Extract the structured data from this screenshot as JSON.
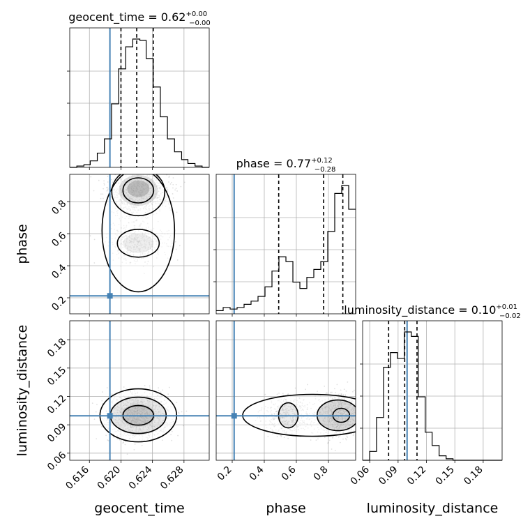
{
  "chart_data": {
    "type": "corner",
    "parameters": [
      "geocent_time",
      "phase",
      "luminosity_distance"
    ],
    "truths": {
      "geocent_time": 0.6186,
      "phase": 0.212,
      "luminosity_distance": 0.0995
    },
    "truth_color": "#4682b4",
    "ranges": {
      "geocent_time": [
        0.6135,
        0.6312
      ],
      "phase": [
        0.1,
        0.97
      ],
      "luminosity_distance": [
        0.0525,
        0.2
      ]
    },
    "ticks": {
      "geocent_time": {
        "values": [
          0.616,
          0.62,
          0.624,
          0.628
        ],
        "labels": [
          "0.616",
          "0.620",
          "0.624",
          "0.628"
        ]
      },
      "phase": {
        "values": [
          0.2,
          0.4,
          0.6,
          0.8
        ],
        "labels": [
          "0.2",
          "0.4",
          "0.6",
          "0.8"
        ]
      },
      "luminosity_distance": {
        "values": [
          0.06,
          0.09,
          0.12,
          0.15,
          0.18
        ],
        "labels": [
          "0.06",
          "0.09",
          "0.12",
          "0.15",
          "0.18"
        ]
      }
    },
    "titles": {
      "geocent_time": {
        "main": "geocent_time = 0.62",
        "upper": "+0.00",
        "lower": "−0.00"
      },
      "phase": {
        "main": "phase = 0.77",
        "upper": "+0.12",
        "lower": "−0.28"
      },
      "luminosity_distance": {
        "main": "luminosity_distance = 0.10",
        "upper": "+0.01",
        "lower": "−0.02"
      }
    },
    "quantiles": {
      "geocent_time": [
        0.62,
        0.622,
        0.6241
      ],
      "phase": [
        0.49,
        0.77,
        0.89
      ],
      "luminosity_distance": [
        0.08,
        0.097,
        0.11
      ]
    },
    "histograms": {
      "geocent_time": {
        "bin_edges": [
          0.6135,
          0.6144,
          0.6153,
          0.6161,
          0.617,
          0.6179,
          0.6188,
          0.6197,
          0.6206,
          0.6215,
          0.6224,
          0.6232,
          0.6241,
          0.625,
          0.6259,
          0.6268,
          0.6277,
          0.6285,
          0.6294,
          0.6303,
          0.6312
        ],
        "counts": [
          0,
          1,
          2,
          5,
          11,
          22,
          49,
          76,
          93,
          99,
          98,
          84,
          62,
          39,
          22,
          12,
          6,
          3,
          1,
          0
        ]
      },
      "phase": {
        "bin_edges": [
          0.1,
          0.1435,
          0.187,
          0.2305,
          0.274,
          0.3175,
          0.361,
          0.4045,
          0.448,
          0.4915,
          0.535,
          0.5785,
          0.622,
          0.6655,
          0.709,
          0.7525,
          0.796,
          0.8395,
          0.883,
          0.9265,
          0.97
        ],
        "counts": [
          2,
          4,
          3,
          4,
          6,
          8,
          11,
          17,
          27,
          36,
          33,
          20,
          16,
          23,
          28,
          33,
          52,
          76,
          81,
          66
        ]
      },
      "luminosity_distance": {
        "bin_edges": [
          0.0525,
          0.0599,
          0.0672,
          0.0746,
          0.0819,
          0.0893,
          0.0966,
          0.104,
          0.1113,
          0.1187,
          0.126,
          0.1334,
          0.1408,
          0.1481,
          0.1555,
          0.1628,
          0.1702,
          0.1775,
          0.1849,
          0.1922,
          0.2
        ],
        "counts": [
          0,
          6,
          29,
          63,
          73,
          69,
          87,
          84,
          43,
          19,
          10,
          3,
          1,
          0,
          0,
          0,
          0,
          0,
          0,
          0
        ]
      }
    },
    "grid": true,
    "density_contour_levels": 4
  }
}
